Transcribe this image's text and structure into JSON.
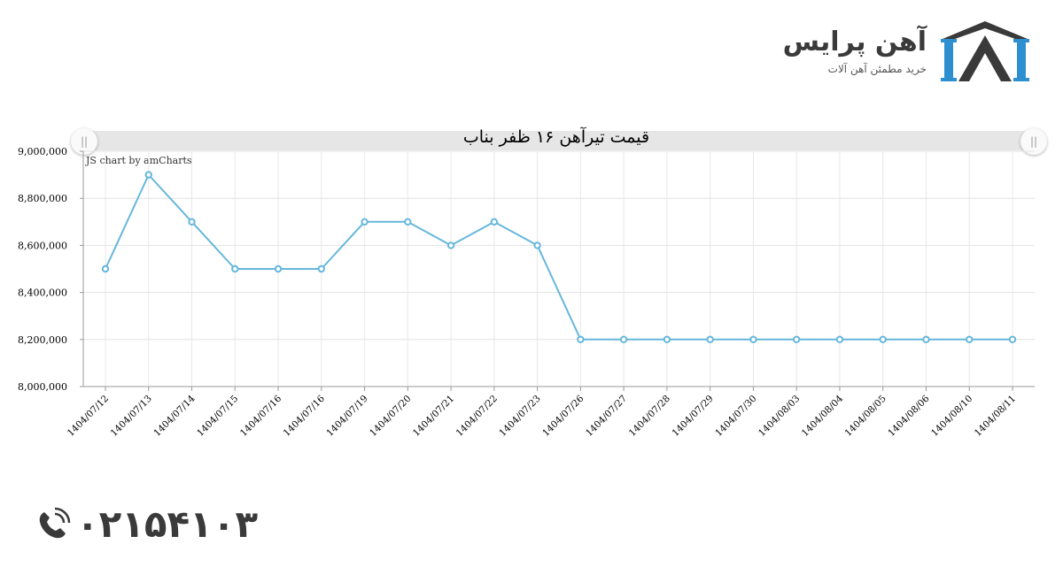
{
  "brand": {
    "name": "آهن پرایس",
    "tagline": "خرید مطمئن آهن آلات",
    "colors": {
      "dark": "#3a3a3a",
      "blue": "#2e8fd0"
    }
  },
  "contact": {
    "phone": "۰۲۱۵۴۱۰۳",
    "icon": "phone-icon"
  },
  "chart_data": {
    "type": "line",
    "title": "قیمت تیرآهن ۱۶ ظفر بناب",
    "credit": "JS chart by amCharts",
    "categories": [
      "1404/07/12",
      "1404/07/13",
      "1404/07/14",
      "1404/07/15",
      "1404/07/16",
      "1404/07/16",
      "1404/07/19",
      "1404/07/20",
      "1404/07/21",
      "1404/07/22",
      "1404/07/23",
      "1404/07/26",
      "1404/07/27",
      "1404/07/28",
      "1404/07/29",
      "1404/07/30",
      "1404/08/03",
      "1404/08/04",
      "1404/08/05",
      "1404/08/06",
      "1404/08/10",
      "1404/08/11"
    ],
    "values": [
      8500000,
      8900000,
      8700000,
      8500000,
      8500000,
      8500000,
      8700000,
      8700000,
      8600000,
      8700000,
      8600000,
      8200000,
      8200000,
      8200000,
      8200000,
      8200000,
      8200000,
      8200000,
      8200000,
      8200000,
      8200000,
      8200000
    ],
    "yticks": [
      "8,000,000",
      "8,200,000",
      "8,400,000",
      "8,600,000",
      "8,800,000",
      "9,000,000"
    ],
    "ylim": [
      8000000,
      9000000
    ],
    "xlabel": "",
    "ylabel": "",
    "grid": true,
    "line_color": "#67b7dc"
  }
}
